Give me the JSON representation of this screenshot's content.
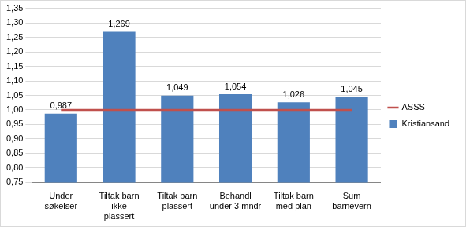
{
  "chart_data": {
    "type": "bar",
    "categories": [
      "Under søkelser",
      "Tiltak barn ikke plassert",
      "Tiltak barn plassert",
      "Behandl under 3 mndr",
      "Tiltak barn med plan",
      "Sum barnevern"
    ],
    "series": [
      {
        "name": "Kristiansand",
        "type": "bar",
        "color": "#4f81bd",
        "values": [
          0.987,
          1.269,
          1.049,
          1.054,
          1.026,
          1.045
        ],
        "value_labels": [
          "0,987",
          "1,269",
          "1,049",
          "1,054",
          "1,026",
          "1,045"
        ]
      },
      {
        "name": "ASSS",
        "type": "line",
        "color": "#c0504d",
        "values": [
          1.0,
          1.0,
          1.0,
          1.0,
          1.0,
          1.0
        ]
      }
    ],
    "ylim": [
      0.75,
      1.35
    ],
    "yticks": [
      {
        "value": 0.75,
        "label": "0,75"
      },
      {
        "value": 0.8,
        "label": "0,80"
      },
      {
        "value": 0.85,
        "label": "0,85"
      },
      {
        "value": 0.9,
        "label": "0,90"
      },
      {
        "value": 0.95,
        "label": "0,95"
      },
      {
        "value": 1.0,
        "label": "1,00"
      },
      {
        "value": 1.05,
        "label": "1,05"
      },
      {
        "value": 1.1,
        "label": "1,10"
      },
      {
        "value": 1.15,
        "label": "1,15"
      },
      {
        "value": 1.2,
        "label": "1,20"
      },
      {
        "value": 1.25,
        "label": "1,25"
      },
      {
        "value": 1.3,
        "label": "1,30"
      },
      {
        "value": 1.35,
        "label": "1,35"
      }
    ],
    "grid": true,
    "legend": "right",
    "data_labels": true
  }
}
